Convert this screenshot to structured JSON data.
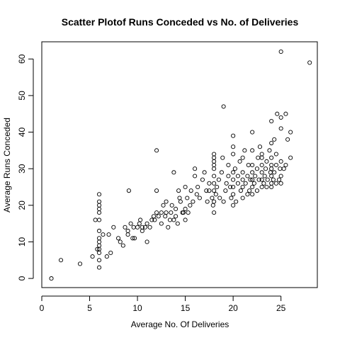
{
  "chart_data": {
    "type": "scatter",
    "title": "Scatter Plotof Runs Conceded vs No. of Deliveries",
    "xlabel": "Average No. Of Deliveries",
    "ylabel": "Average Runs Conceded",
    "xlim": [
      0,
      28.8
    ],
    "ylim": [
      -2.5,
      64.7
    ],
    "xticks": [
      0,
      5,
      10,
      15,
      20,
      25
    ],
    "yticks": [
      0,
      10,
      20,
      30,
      40,
      50,
      60
    ],
    "grid": false,
    "legend": "none",
    "marker_color": "#000000",
    "points": [
      [
        1,
        0
      ],
      [
        2,
        5
      ],
      [
        4,
        4
      ],
      [
        5.3,
        6
      ],
      [
        5.6,
        16
      ],
      [
        5.8,
        8
      ],
      [
        6,
        3
      ],
      [
        6,
        5
      ],
      [
        6,
        7
      ],
      [
        6,
        8
      ],
      [
        6,
        9
      ],
      [
        6,
        10
      ],
      [
        6,
        11
      ],
      [
        6,
        13
      ],
      [
        6,
        16
      ],
      [
        6,
        18
      ],
      [
        6,
        19
      ],
      [
        6,
        20
      ],
      [
        6,
        21
      ],
      [
        6,
        23
      ],
      [
        6.4,
        12
      ],
      [
        6.8,
        6
      ],
      [
        7,
        12
      ],
      [
        7.2,
        7
      ],
      [
        7.5,
        14
      ],
      [
        8,
        11
      ],
      [
        8.2,
        10
      ],
      [
        8.5,
        9
      ],
      [
        8.7,
        14
      ],
      [
        9,
        13
      ],
      [
        9,
        12
      ],
      [
        9.1,
        24
      ],
      [
        9.3,
        15
      ],
      [
        9.5,
        11
      ],
      [
        9.6,
        14
      ],
      [
        9.7,
        11
      ],
      [
        10,
        14
      ],
      [
        10.2,
        15
      ],
      [
        10.3,
        16
      ],
      [
        10.5,
        14
      ],
      [
        10.5,
        13
      ],
      [
        10.8,
        14
      ],
      [
        11,
        10
      ],
      [
        11,
        15
      ],
      [
        11.3,
        14
      ],
      [
        11.5,
        16
      ],
      [
        11.7,
        17
      ],
      [
        11.8,
        16
      ],
      [
        12,
        35
      ],
      [
        12,
        24
      ],
      [
        12,
        18
      ],
      [
        12.2,
        17
      ],
      [
        12.5,
        18
      ],
      [
        12.5,
        15
      ],
      [
        12.7,
        20
      ],
      [
        12.9,
        17
      ],
      [
        13,
        21
      ],
      [
        13,
        18
      ],
      [
        13.2,
        14
      ],
      [
        13.4,
        16
      ],
      [
        13.5,
        18
      ],
      [
        13.6,
        20
      ],
      [
        13.8,
        16
      ],
      [
        13.8,
        29
      ],
      [
        14,
        17
      ],
      [
        14,
        19
      ],
      [
        14.2,
        15
      ],
      [
        14.3,
        24
      ],
      [
        14.4,
        22
      ],
      [
        14.5,
        21
      ],
      [
        14.7,
        18
      ],
      [
        14.8,
        18
      ],
      [
        15,
        16
      ],
      [
        15,
        19
      ],
      [
        15,
        25
      ],
      [
        15.2,
        22
      ],
      [
        15.3,
        18
      ],
      [
        15.5,
        20
      ],
      [
        15.6,
        24
      ],
      [
        15.8,
        21
      ],
      [
        16,
        28
      ],
      [
        16,
        30
      ],
      [
        16.2,
        23
      ],
      [
        16.3,
        25
      ],
      [
        16.5,
        22
      ],
      [
        16.8,
        27
      ],
      [
        17,
        29
      ],
      [
        17.2,
        24
      ],
      [
        17.3,
        21
      ],
      [
        17.5,
        24
      ],
      [
        17.5,
        26
      ],
      [
        17.8,
        22
      ],
      [
        17.9,
        20
      ],
      [
        18,
        18
      ],
      [
        18,
        21
      ],
      [
        18,
        24
      ],
      [
        18,
        26
      ],
      [
        18,
        28
      ],
      [
        18,
        30
      ],
      [
        18,
        31
      ],
      [
        18,
        32
      ],
      [
        18,
        33
      ],
      [
        18,
        34
      ],
      [
        18.2,
        23
      ],
      [
        18.3,
        25
      ],
      [
        18.5,
        27
      ],
      [
        18.6,
        22
      ],
      [
        18.8,
        29
      ],
      [
        18.9,
        33
      ],
      [
        19,
        21
      ],
      [
        19,
        47
      ],
      [
        19.2,
        24
      ],
      [
        19.3,
        26
      ],
      [
        19.5,
        28
      ],
      [
        19.5,
        31
      ],
      [
        19.7,
        25
      ],
      [
        19.8,
        22
      ],
      [
        20,
        20
      ],
      [
        20,
        23
      ],
      [
        20,
        25
      ],
      [
        20,
        27
      ],
      [
        20,
        29
      ],
      [
        20,
        34
      ],
      [
        20,
        36
      ],
      [
        20,
        39
      ],
      [
        20.2,
        30
      ],
      [
        20.3,
        21
      ],
      [
        20.5,
        26
      ],
      [
        20.5,
        28
      ],
      [
        20.7,
        32
      ],
      [
        20.8,
        24
      ],
      [
        21,
        22
      ],
      [
        21,
        25
      ],
      [
        21,
        27
      ],
      [
        21,
        29
      ],
      [
        21,
        33
      ],
      [
        21.2,
        35
      ],
      [
        21.3,
        26
      ],
      [
        21.5,
        23
      ],
      [
        21.5,
        28
      ],
      [
        21.6,
        31
      ],
      [
        21.7,
        24
      ],
      [
        21.8,
        27
      ],
      [
        22,
        23
      ],
      [
        22,
        25
      ],
      [
        22,
        27
      ],
      [
        22,
        29
      ],
      [
        22,
        31
      ],
      [
        22,
        35
      ],
      [
        22,
        40
      ],
      [
        22.2,
        26
      ],
      [
        22.3,
        28
      ],
      [
        22.5,
        24
      ],
      [
        22.5,
        30
      ],
      [
        22.6,
        33
      ],
      [
        22.7,
        27
      ],
      [
        22.8,
        36
      ],
      [
        23,
        25
      ],
      [
        23,
        27
      ],
      [
        23,
        29
      ],
      [
        23,
        31
      ],
      [
        23,
        33
      ],
      [
        23,
        34
      ],
      [
        23.2,
        26
      ],
      [
        23.3,
        28
      ],
      [
        23.4,
        30
      ],
      [
        23.5,
        25
      ],
      [
        23.5,
        32
      ],
      [
        23.6,
        27
      ],
      [
        23.8,
        35
      ],
      [
        23.9,
        29
      ],
      [
        24,
        25
      ],
      [
        24,
        26
      ],
      [
        24,
        28
      ],
      [
        24,
        30
      ],
      [
        24,
        31
      ],
      [
        24,
        33
      ],
      [
        24,
        37
      ],
      [
        24,
        43
      ],
      [
        24.2,
        27
      ],
      [
        24.3,
        29
      ],
      [
        24.3,
        38
      ],
      [
        24.5,
        26
      ],
      [
        24.5,
        31
      ],
      [
        24.5,
        34
      ],
      [
        24.6,
        45
      ],
      [
        24.8,
        27
      ],
      [
        24.9,
        30
      ],
      [
        25,
        26
      ],
      [
        25,
        28
      ],
      [
        25,
        32
      ],
      [
        25,
        41
      ],
      [
        25,
        44
      ],
      [
        25,
        62
      ],
      [
        25.3,
        30
      ],
      [
        25.5,
        45
      ],
      [
        25.5,
        31
      ],
      [
        25.7,
        38
      ],
      [
        26,
        33
      ],
      [
        26,
        40
      ],
      [
        28,
        59
      ]
    ]
  }
}
